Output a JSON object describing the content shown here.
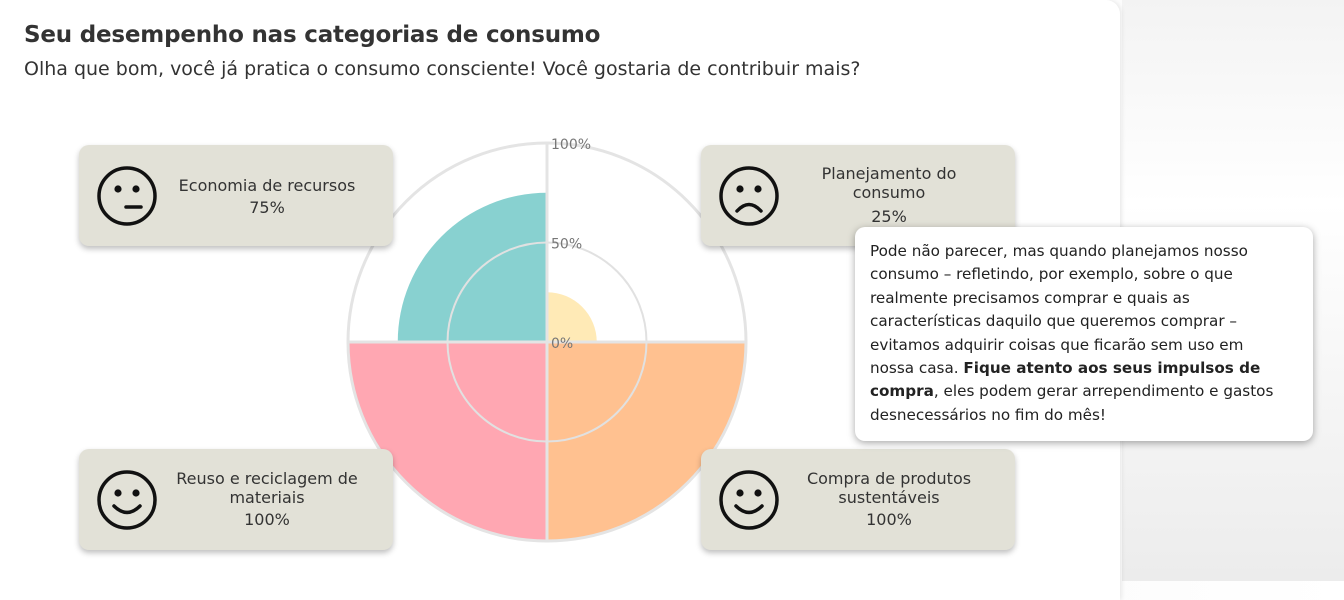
{
  "header": {
    "title": "Seu desempenho nas categorias de consumo",
    "subtitle": "Olha que bom, você já pratica o consumo consciente! Você gostaria de contribuir mais?"
  },
  "chart_data": {
    "type": "polar-area",
    "categories": [
      "Economia de recursos",
      "Planejamento do consumo",
      "Compra de produtos sustentáveis",
      "Reuso e reciclagem de materiais"
    ],
    "values": [
      75,
      25,
      100,
      100
    ],
    "unit": "%",
    "rlim": [
      0,
      100
    ],
    "ticks": [
      "0%",
      "50%",
      "100%"
    ],
    "colors": [
      "#88d1d0",
      "#ffeab6",
      "#ffc190",
      "#ffa7b2"
    ]
  },
  "cards": {
    "economia": {
      "label": "Economia de recursos",
      "value": "75%",
      "face": "neutral-face-icon"
    },
    "planejamento": {
      "label_line1": "Planejamento do",
      "label_line2": "consumo",
      "value": "25%",
      "face": "sad-face-icon"
    },
    "reuso": {
      "label_line1": "Reuso e reciclagem de",
      "label_line2": "materiais",
      "value": "100%",
      "face": "happy-face-icon"
    },
    "compra": {
      "label_line1": "Compra de produtos",
      "label_line2": "sustentáveis",
      "value": "100%",
      "face": "happy-face-icon"
    }
  },
  "tooltip": {
    "text_before": "Pode não parecer, mas quando planejamos nosso consumo – refletindo, por exemplo, sobre o que realmente precisamos comprar e quais as características daquilo que queremos comprar – evitamos adquirir coisas que ficarão sem uso em nossa casa. ",
    "text_bold": "Fique atento aos seus impulsos de compra",
    "text_after": ", eles podem gerar arrependimento e gastos desnecessários no fim do mês!"
  }
}
